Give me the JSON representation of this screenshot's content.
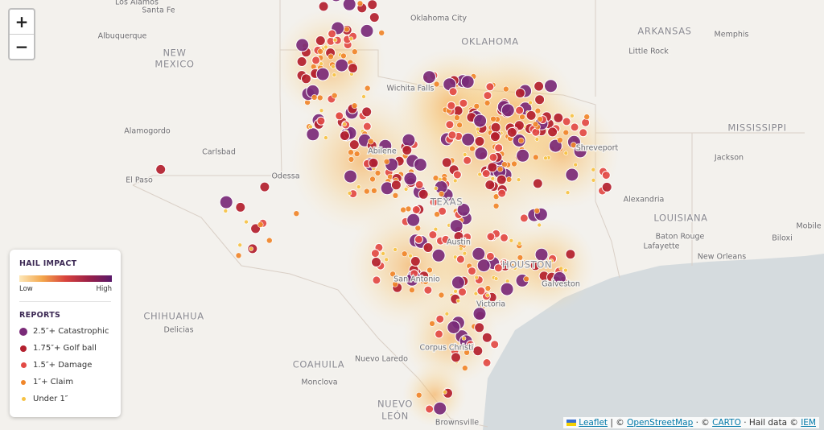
{
  "zoom": {
    "in": "+",
    "out": "−"
  },
  "legend": {
    "title": "HAIL IMPACT",
    "low": "Low",
    "high": "High",
    "reports_title": "REPORTS",
    "reports": [
      {
        "label": "2.5″+ Catastrophic",
        "color": "#7a2a78"
      },
      {
        "label": "1.75″+ Golf ball",
        "color": "#b3202e"
      },
      {
        "label": "1.5″+ Damage",
        "color": "#e24a45"
      },
      {
        "label": "1″+ Claim",
        "color": "#f0862a"
      },
      {
        "label": "Under 1″",
        "color": "#f6c244"
      }
    ]
  },
  "labels": [
    "Los Alamos",
    "Santa Fe",
    "Albuquerque",
    "NEW",
    "MEXICO",
    "Alamogordo",
    "Carlsbad",
    "El Paso",
    "Odessa",
    "Oklahoma City",
    "OKLAHOMA",
    "ARKANSAS",
    "Memphis",
    "Little Rock",
    "MISSISSIPPI",
    "Jackson",
    "Shreveport",
    "Alexandria",
    "LOUISIANA",
    "Baton Rouge",
    "Lafayette",
    "New Orleans",
    "Mobile",
    "Biloxi",
    "TEXAS",
    "Austin",
    "San Antonio",
    "HOUSTON",
    "Galveston",
    "Victoria",
    "CHIHUAHUA",
    "Delicias",
    "COAHUILA",
    "Monclova",
    "Nuevo Laredo",
    "Corpus Christi",
    "NUEVO",
    "LEÓN",
    "Brownsville",
    "Wichita Falls",
    "Abilene"
  ],
  "attribution": {
    "leaflet": "Leaflet",
    "sep": "| ©",
    "osm": "OpenStreetMap",
    "sep2": "· ©",
    "carto": "CARTO",
    "hail": "· Hail data ©",
    "iem": "IEM"
  }
}
